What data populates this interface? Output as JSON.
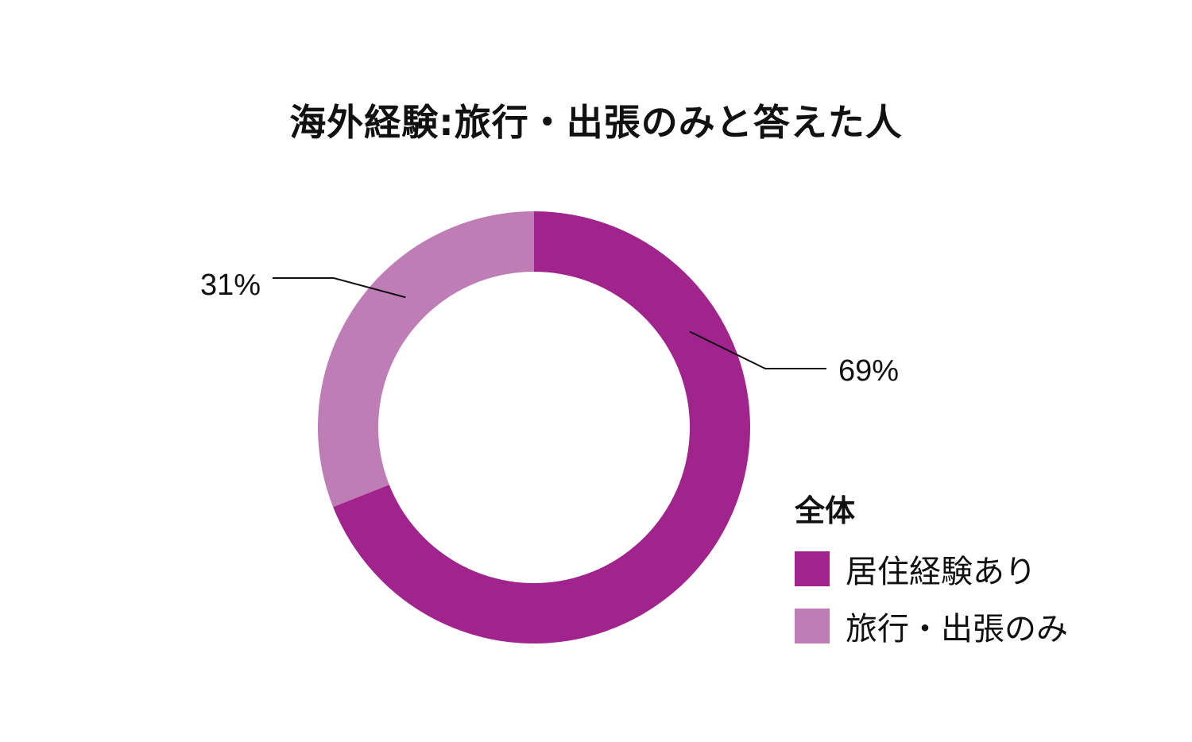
{
  "chart_data": {
    "type": "pie",
    "title": "海外経験:旅行・出張のみと答えた人",
    "legend_title": "全体",
    "legend_position": "bottom-right",
    "slices": [
      {
        "name": "居住経験あり",
        "value": 69,
        "label": "69%",
        "color": "#a0248c"
      },
      {
        "name": "旅行・出張のみ",
        "value": 31,
        "label": "31%",
        "color": "#bf7db5"
      }
    ]
  }
}
